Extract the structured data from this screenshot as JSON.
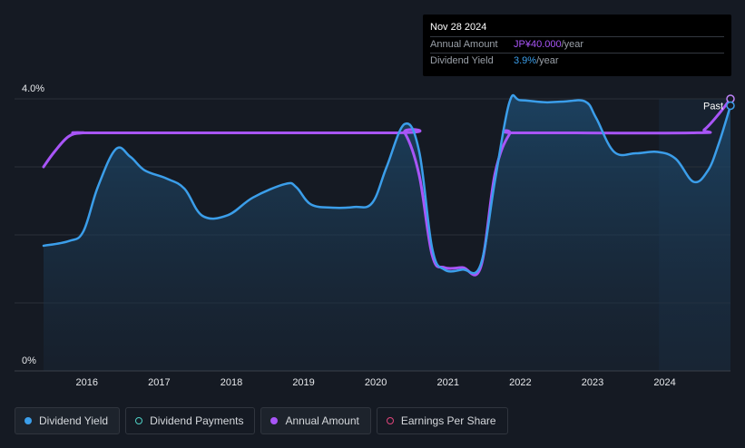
{
  "tooltip": {
    "date": "Nov 28 2024",
    "annual_amount_label": "Annual Amount",
    "annual_amount_value": "JP¥40.000",
    "annual_amount_unit": "/year",
    "dividend_yield_label": "Dividend Yield",
    "dividend_yield_value": "3.9%",
    "dividend_yield_unit": "/year"
  },
  "colors": {
    "dividend_yield": "#3b9eea",
    "annual_amount": "#a855f7",
    "dividend_payments": "#4fd1c5",
    "earnings_per_share": "#e0457b",
    "background": "#151a23"
  },
  "legend": [
    {
      "label": "Dividend Yield",
      "color": "#3b9eea",
      "filled": true,
      "active": true
    },
    {
      "label": "Dividend Payments",
      "color": "#4fd1c5",
      "filled": false,
      "active": false
    },
    {
      "label": "Annual Amount",
      "color": "#a855f7",
      "filled": true,
      "active": true
    },
    {
      "label": "Earnings Per Share",
      "color": "#e0457b",
      "filled": false,
      "active": false
    }
  ],
  "chart_data": {
    "type": "line",
    "ylim": [
      0,
      4.0
    ],
    "y_tick_labels": [
      "4.0%",
      "0%"
    ],
    "xlim": [
      2015.4,
      2024.91
    ],
    "x_tick_labels": [
      "2016",
      "2017",
      "2018",
      "2019",
      "2020",
      "2021",
      "2022",
      "2023",
      "2024"
    ],
    "grid": true,
    "forecast_shading_start": 2023.92,
    "past_label": "Past",
    "series": [
      {
        "name": "Dividend Yield",
        "unit": "%",
        "area": true,
        "points": [
          [
            2015.4,
            1.84
          ],
          [
            2015.75,
            1.91
          ],
          [
            2015.95,
            2.05
          ],
          [
            2016.15,
            2.7
          ],
          [
            2016.4,
            3.26
          ],
          [
            2016.6,
            3.15
          ],
          [
            2016.8,
            2.95
          ],
          [
            2017.1,
            2.83
          ],
          [
            2017.35,
            2.68
          ],
          [
            2017.6,
            2.28
          ],
          [
            2017.95,
            2.29
          ],
          [
            2018.3,
            2.55
          ],
          [
            2018.75,
            2.75
          ],
          [
            2018.9,
            2.7
          ],
          [
            2019.1,
            2.45
          ],
          [
            2019.4,
            2.4
          ],
          [
            2019.7,
            2.41
          ],
          [
            2019.95,
            2.47
          ],
          [
            2020.15,
            3.0
          ],
          [
            2020.4,
            3.63
          ],
          [
            2020.6,
            3.23
          ],
          [
            2020.78,
            1.8
          ],
          [
            2020.95,
            1.49
          ],
          [
            2021.2,
            1.49
          ],
          [
            2021.45,
            1.56
          ],
          [
            2021.65,
            2.8
          ],
          [
            2021.85,
            3.95
          ],
          [
            2022.0,
            3.98
          ],
          [
            2022.35,
            3.95
          ],
          [
            2022.6,
            3.96
          ],
          [
            2022.9,
            3.96
          ],
          [
            2023.05,
            3.72
          ],
          [
            2023.3,
            3.22
          ],
          [
            2023.6,
            3.2
          ],
          [
            2023.9,
            3.22
          ],
          [
            2024.15,
            3.12
          ],
          [
            2024.4,
            2.78
          ],
          [
            2024.6,
            2.95
          ],
          [
            2024.75,
            3.35
          ],
          [
            2024.91,
            3.9
          ]
        ]
      },
      {
        "name": "Annual Amount",
        "unit": "JP¥/year",
        "area": false,
        "points": [
          [
            2015.4,
            3.0
          ],
          [
            2015.55,
            3.22
          ],
          [
            2015.75,
            3.45
          ],
          [
            2015.95,
            3.5
          ],
          [
            2016.2,
            3.5
          ],
          [
            2020.25,
            3.5
          ],
          [
            2020.4,
            3.5
          ],
          [
            2020.6,
            2.88
          ],
          [
            2020.78,
            1.7
          ],
          [
            2020.95,
            1.52
          ],
          [
            2021.2,
            1.52
          ],
          [
            2021.45,
            1.52
          ],
          [
            2021.65,
            2.9
          ],
          [
            2021.85,
            3.48
          ],
          [
            2022.0,
            3.5
          ],
          [
            2024.4,
            3.5
          ],
          [
            2024.55,
            3.55
          ],
          [
            2024.75,
            3.78
          ],
          [
            2024.91,
            4.0
          ]
        ]
      }
    ]
  }
}
